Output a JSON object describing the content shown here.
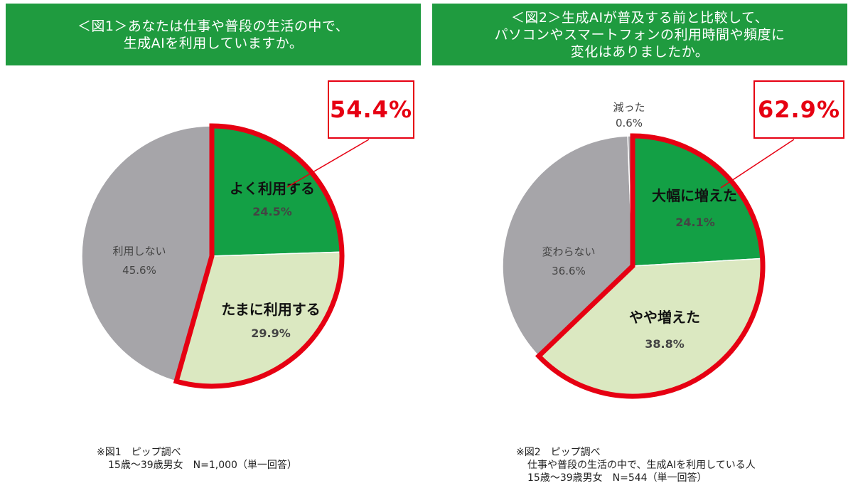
{
  "figure1": {
    "title_line1": "＜図1＞あなたは仕事や普段の生活の中で、",
    "title_line2": "生成AIを利用していますか。",
    "callout": "54.4%",
    "note_line1": "※図1　ピップ調べ",
    "note_line2": "15歳～39歳男女　N=1,000（単一回答）"
  },
  "figure2": {
    "title_line1": "＜図2＞生成AIが普及する前と比較して、",
    "title_line2": "パソコンやスマートフォンの利用時間や頻度に",
    "title_line3": "変化はありましたか。",
    "callout": "62.9%",
    "note_line1": "※図2　ピップ調べ",
    "note_line2": "仕事や普段の生活の中で、生成AIを利用している人",
    "note_line3": "15歳～39歳男女　N=544（単一回答）"
  },
  "colors": {
    "banner": "#1f9b3f",
    "dark_green": "#13a045",
    "light_green": "#dbe8c1",
    "gray": "#a6a5a9",
    "highlight_red": "#e60012"
  },
  "chart_data": [
    {
      "type": "pie",
      "title": "＜図1＞あなたは仕事や普段の生活の中で、生成AIを利用していますか。",
      "slices": [
        {
          "label": "よく利用する",
          "value": 24.5,
          "value_label": "24.5%",
          "color": "#13a045",
          "emphasis": true
        },
        {
          "label": "たまに利用する",
          "value": 29.9,
          "value_label": "29.9%",
          "color": "#dbe8c1",
          "emphasis": true
        },
        {
          "label": "利用しない",
          "value": 45.6,
          "value_label": "45.6%",
          "color": "#a6a5a9",
          "emphasis": false
        }
      ],
      "highlight_total": "54.4%"
    },
    {
      "type": "pie",
      "title": "＜図2＞生成AIが普及する前と比較して、パソコンやスマートフォンの利用時間や頻度に変化はありましたか。",
      "slices": [
        {
          "label": "大幅に増えた",
          "value": 24.1,
          "value_label": "24.1%",
          "color": "#13a045",
          "emphasis": true
        },
        {
          "label": "やや増えた",
          "value": 38.8,
          "value_label": "38.8%",
          "color": "#dbe8c1",
          "emphasis": true
        },
        {
          "label": "変わらない",
          "value": 36.6,
          "value_label": "36.6%",
          "color": "#a6a5a9",
          "emphasis": false
        },
        {
          "label": "減った",
          "value": 0.6,
          "value_label": "0.6%",
          "color": "#a6a5a9",
          "emphasis": false
        }
      ],
      "highlight_total": "62.9%"
    }
  ]
}
